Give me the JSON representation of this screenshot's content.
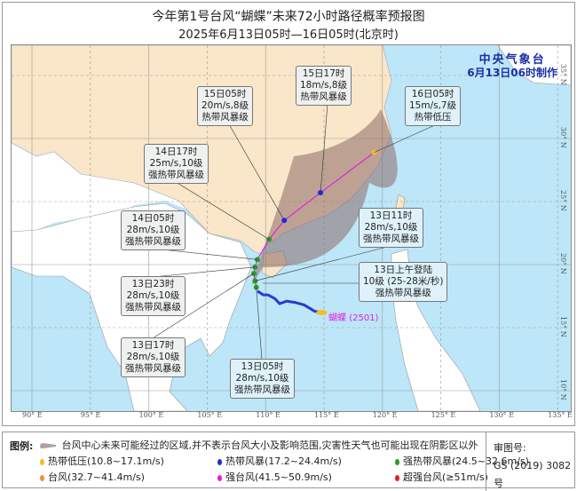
{
  "title": "今年第1号台风“蝴蝶”未来72小时路径概率预报图",
  "subtitle": "2025年6月13日05时—16日05时(北京时)",
  "agency": {
    "name": "中央气象台",
    "issued": "6月13日06时制作"
  },
  "typhoon_label": {
    "name": "蝴蝶",
    "code": "(2501)",
    "color": "#e020e0"
  },
  "axes": {
    "longitudes": [
      "90° E",
      "95° E",
      "100° E",
      "105° E",
      "110° E",
      "115° E",
      "120° E",
      "125° E",
      "130° E",
      "135° E"
    ],
    "latitudes": [
      "35° N",
      "30° N",
      "25° N",
      "20° N",
      "15° N",
      "10° N"
    ]
  },
  "forecast_points": [
    {
      "time": "13日05时",
      "speed": "28m/s,10级",
      "level": "强热带风暴级",
      "lon": 109.2,
      "lat": 18.2,
      "color": "#2a9a2a"
    },
    {
      "time": "13日11时",
      "speed": "28m/s,10级",
      "level": "强热带风暴级",
      "lon": 109.1,
      "lat": 18.7,
      "color": "#2a9a2a"
    },
    {
      "time": "13日17时",
      "speed": "28m/s,10级",
      "level": "强热带风暴级",
      "lon": 109.0,
      "lat": 19.3,
      "color": "#2a9a2a"
    },
    {
      "time": "13日23时",
      "speed": "28m/s,10级",
      "level": "强热带风暴级",
      "lon": 109.1,
      "lat": 19.8,
      "color": "#2a9a2a"
    },
    {
      "time": "14日05时",
      "speed": "28m/s,10级",
      "level": "强热带风暴级",
      "lon": 109.3,
      "lat": 20.4,
      "color": "#2a9a2a"
    },
    {
      "time": "14日17时",
      "speed": "25m/s,10级",
      "level": "强热带风暴级",
      "lon": 110.3,
      "lat": 22.0,
      "color": "#2a9a2a"
    },
    {
      "time": "15日05时",
      "speed": "20m/s,8级",
      "level": "热带风暴级",
      "lon": 111.6,
      "lat": 23.5,
      "color": "#1a2fd0"
    },
    {
      "time": "15日17时",
      "speed": "18m/s,8级",
      "level": "热带风暴级",
      "lon": 114.7,
      "lat": 25.7,
      "color": "#1a2fd0"
    },
    {
      "time": "16日05时",
      "speed": "15m/s,7级",
      "level": "热带低压",
      "lon": 119.3,
      "lat": 28.9,
      "color": "#f0c020"
    }
  ],
  "landfall": {
    "line1": "13日上午登陆",
    "line2": "10级 (25-28米/秒)",
    "line3": "强热带风暴级"
  },
  "past_track": [
    [
      114.8,
      16.2
    ],
    [
      114.2,
      16.3
    ],
    [
      113.3,
      16.8
    ],
    [
      112.5,
      17.0
    ],
    [
      111.8,
      17.1
    ],
    [
      111.2,
      16.9
    ],
    [
      110.8,
      17.3
    ],
    [
      110.2,
      17.6
    ],
    [
      109.8,
      17.6
    ],
    [
      109.3,
      17.9
    ]
  ],
  "legend": {
    "heading": "图例:",
    "cone": "台风中心未来可能经过的区域,并不表示台风大小及影响范围,灾害性天气也可能出现在阴影区以外",
    "items": [
      {
        "label": "热带低压(10.8~17.1m/s)",
        "color": "#f0c020"
      },
      {
        "label": "热带风暴(17.2~24.4m/s)",
        "color": "#1a2fd0"
      },
      {
        "label": "强热带风暴(24.5~32.6m/s)",
        "color": "#2a9a2a"
      },
      {
        "label": "台风(32.7~41.4m/s)",
        "color": "#f09040"
      },
      {
        "label": "强台风(41.5~50.9m/s)",
        "color": "#e020e0"
      },
      {
        "label": "超强台风(≥51m/s)",
        "color": "#e02020"
      }
    ],
    "approval_label": "审图号:",
    "approval_number": "GS (2019) 3082号"
  },
  "colors": {
    "sea": "#bde6f8",
    "land_china": "#fae6c8",
    "land_other": "#ffffff",
    "cone": "#8a6a6a",
    "track": "#e020e0"
  }
}
